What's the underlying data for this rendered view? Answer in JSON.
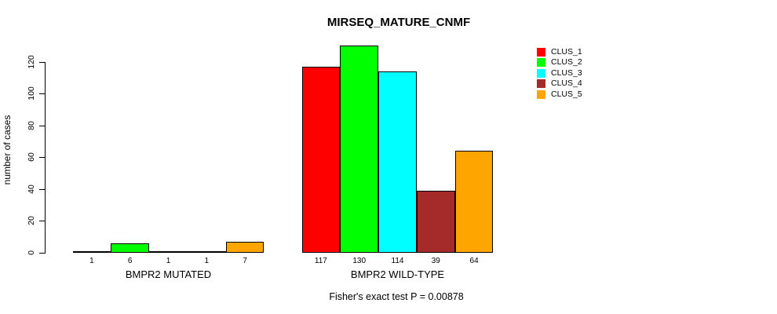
{
  "title": "MIRSEQ_MATURE_CNMF",
  "subtitle": "Fisher's exact test P = 0.00878",
  "chart_data": {
    "type": "bar",
    "title": "MIRSEQ_MATURE_CNMF",
    "subtitle": "Fisher's exact test P = 0.00878",
    "ylabel": "number of cases",
    "xlabel": "",
    "ylim": [
      0,
      130
    ],
    "yticks": [
      0,
      20,
      40,
      60,
      80,
      100,
      120
    ],
    "grid": false,
    "legend_position": "right",
    "series_names": [
      "CLUS_1",
      "CLUS_2",
      "CLUS_3",
      "CLUS_4",
      "CLUS_5"
    ],
    "series_colors": [
      "#FF0000",
      "#00FF00",
      "#00FFFF",
      "#A52A2A",
      "#FFA500"
    ],
    "groups": [
      {
        "label": "BMPR2 MUTATED",
        "values": [
          1,
          6,
          1,
          1,
          7
        ]
      },
      {
        "label": "BMPR2 WILD-TYPE",
        "values": [
          117,
          130,
          114,
          39,
          64
        ]
      }
    ]
  }
}
